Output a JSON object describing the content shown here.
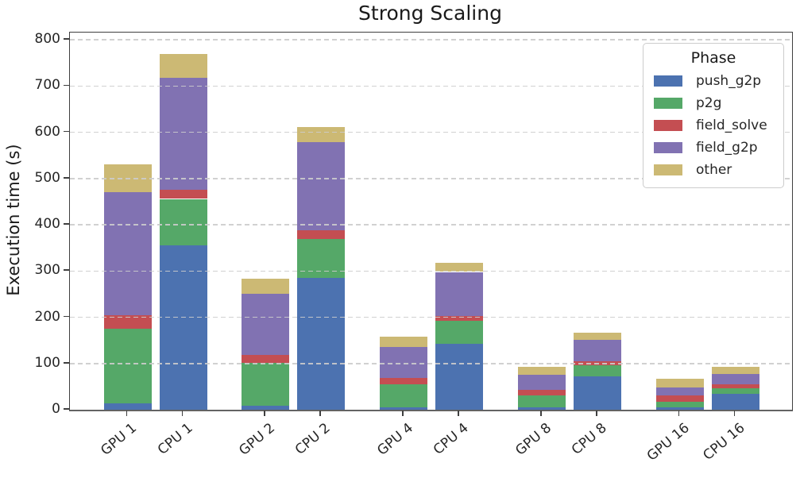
{
  "chart_data": {
    "type": "bar",
    "stacked": true,
    "title": "Strong Scaling",
    "ylabel": "Execution time (s)",
    "xlabel": "",
    "ylim": [
      0,
      800
    ],
    "yticks": [
      0,
      100,
      200,
      300,
      400,
      500,
      600,
      700,
      800
    ],
    "grid": "horizontal-dashed-over-bars",
    "legend_title": "Phase",
    "legend_position": "upper-right",
    "categories": [
      "GPU 1",
      "CPU 1",
      "GPU 2",
      "CPU 2",
      "GPU 4",
      "CPU 4",
      "GPU 8",
      "CPU 8",
      "GPU 16",
      "CPU 16"
    ],
    "series": [
      {
        "name": "push_g2p",
        "color": "#4C72B0",
        "values": [
          14,
          355,
          8,
          285,
          6,
          142,
          5,
          72,
          5,
          35
        ]
      },
      {
        "name": "p2g",
        "color": "#55A868",
        "values": [
          161,
          101,
          93,
          85,
          49,
          51,
          26,
          24,
          13,
          12
        ]
      },
      {
        "name": "field_solve",
        "color": "#C44E52",
        "values": [
          30,
          20,
          18,
          18,
          14,
          9,
          12,
          9,
          13,
          8
        ]
      },
      {
        "name": "field_g2p",
        "color": "#8172B2",
        "values": [
          265,
          242,
          131,
          190,
          66,
          96,
          32,
          46,
          17,
          22
        ]
      },
      {
        "name": "other",
        "color": "#CCB974",
        "values": [
          60,
          52,
          34,
          34,
          23,
          20,
          18,
          16,
          19,
          16
        ]
      }
    ],
    "totals": [
      530,
      770,
      284,
      612,
      158,
      318,
      93,
      167,
      67,
      93
    ],
    "grid_color": "#cccccc",
    "axis_color": "#3f3f3f",
    "text_color": "#262626",
    "background_color": "#ffffff"
  }
}
